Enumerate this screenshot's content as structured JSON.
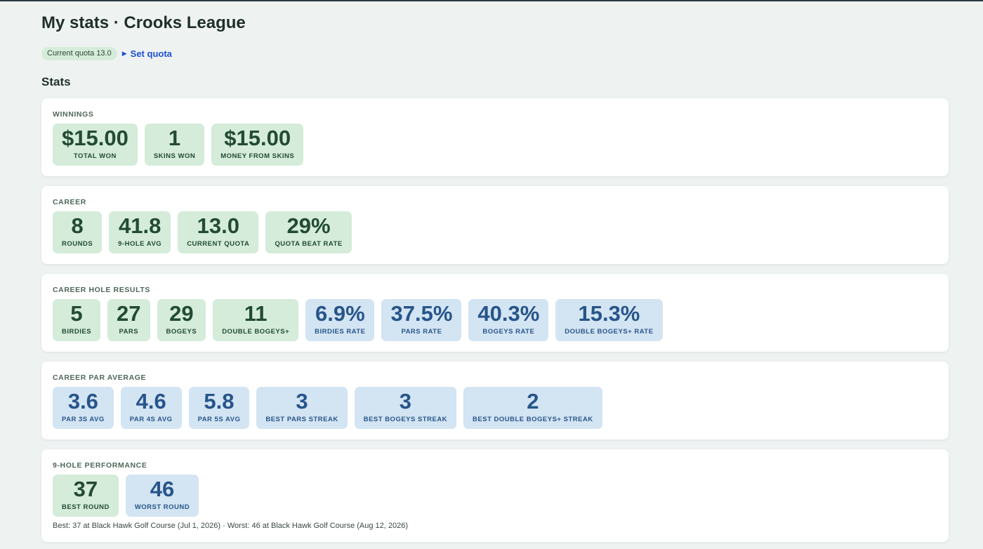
{
  "page_title": "My stats · Crooks League",
  "quota_pill": "Current quota 13.0",
  "set_quota_label": "Set quota",
  "stats_heading": "Stats",
  "cards": {
    "winnings": {
      "label": "Winnings",
      "tiles": [
        {
          "value": "$15.00",
          "label": "Total won"
        },
        {
          "value": "1",
          "label": "Skins won"
        },
        {
          "value": "$15.00",
          "label": "Money from skins"
        }
      ]
    },
    "career": {
      "label": "Career",
      "tiles": [
        {
          "value": "8",
          "label": "Rounds"
        },
        {
          "value": "41.8",
          "label": "9-hole avg"
        },
        {
          "value": "13.0",
          "label": "Current quota"
        },
        {
          "value": "29%",
          "label": "Quota beat rate"
        }
      ]
    },
    "hole_results": {
      "label": "Career hole results",
      "tiles": [
        {
          "value": "5",
          "label": "Birdies"
        },
        {
          "value": "27",
          "label": "Pars"
        },
        {
          "value": "29",
          "label": "Bogeys"
        },
        {
          "value": "11",
          "label": "Double bogeys+"
        },
        {
          "value": "6.9%",
          "label": "Birdies rate"
        },
        {
          "value": "37.5%",
          "label": "Pars rate"
        },
        {
          "value": "40.3%",
          "label": "Bogeys rate"
        },
        {
          "value": "15.3%",
          "label": "Double bogeys+ rate"
        }
      ]
    },
    "par_average": {
      "label": "Career par average",
      "tiles": [
        {
          "value": "3.6",
          "label": "Par 3s avg"
        },
        {
          "value": "4.6",
          "label": "Par 4s avg"
        },
        {
          "value": "5.8",
          "label": "Par 5s avg"
        },
        {
          "value": "3",
          "label": "Best pars streak"
        },
        {
          "value": "3",
          "label": "Best bogeys streak"
        },
        {
          "value": "2",
          "label": "Best double bogeys+ streak"
        }
      ]
    },
    "nine_hole": {
      "label": "9-hole performance",
      "tiles": [
        {
          "value": "37",
          "label": "Best round"
        },
        {
          "value": "46",
          "label": "Worst round"
        }
      ],
      "note": "Best: 37 at Black Hawk Golf Course (Jul 1, 2026) · Worst: 46 at Black Hawk Golf Course (Aug 12, 2026)"
    }
  },
  "colors": {
    "green_tile": "#d4ecd9",
    "blue_tile": "#d3e4f3",
    "link": "#1e4fd6"
  }
}
